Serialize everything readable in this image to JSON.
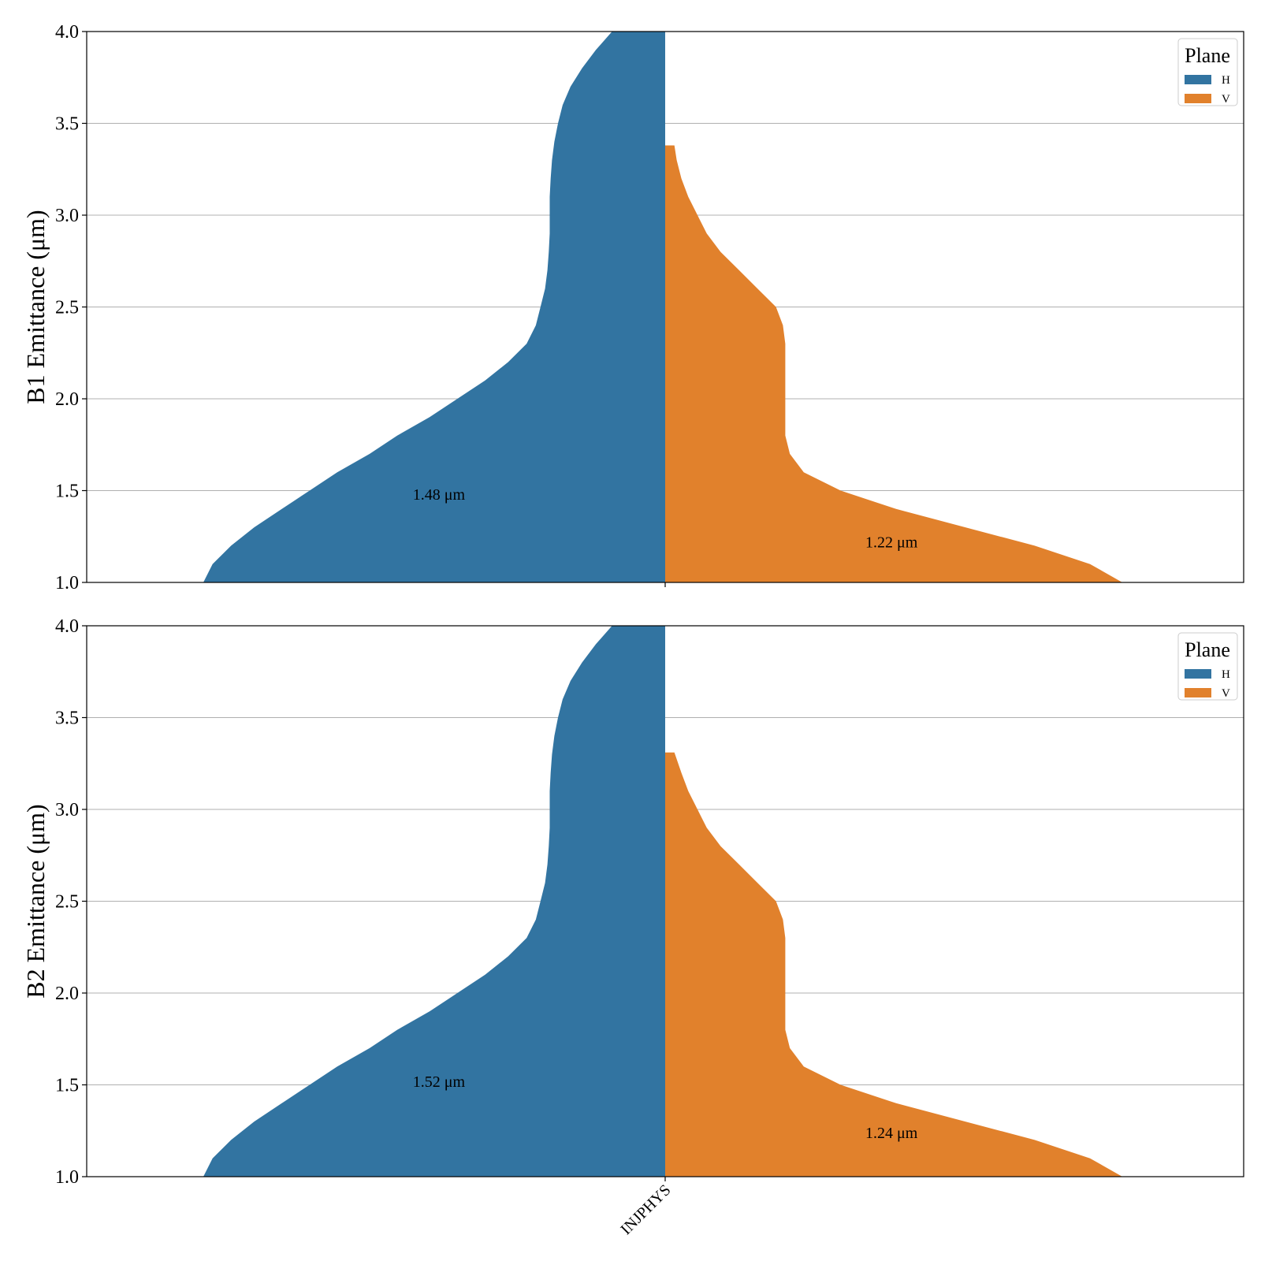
{
  "colors": {
    "H": "#3274a1",
    "V": "#e1812c"
  },
  "chart_data": [
    {
      "type": "violin",
      "ylabel": "B1 Emittance (μm)",
      "ylim": [
        1.0,
        4.0
      ],
      "yticks": [
        "1.0",
        "1.5",
        "2.0",
        "2.5",
        "3.0",
        "3.5",
        "4.0"
      ],
      "categories": [
        "INJPHYS"
      ],
      "grid": "y",
      "legend": {
        "title": "Plane",
        "placement": "top-right",
        "entries": [
          "H",
          "V"
        ]
      },
      "series": [
        {
          "name": "H",
          "side": "left",
          "profile": [
            [
              1.0,
              1.0
            ],
            [
              1.1,
              0.98
            ],
            [
              1.2,
              0.94
            ],
            [
              1.3,
              0.89
            ],
            [
              1.4,
              0.83
            ],
            [
              1.5,
              0.77
            ],
            [
              1.6,
              0.71
            ],
            [
              1.7,
              0.64
            ],
            [
              1.8,
              0.58
            ],
            [
              1.9,
              0.51
            ],
            [
              2.0,
              0.45
            ],
            [
              2.1,
              0.39
            ],
            [
              2.2,
              0.34
            ],
            [
              2.3,
              0.3
            ],
            [
              2.4,
              0.28
            ],
            [
              2.5,
              0.27
            ],
            [
              2.6,
              0.26
            ],
            [
              2.7,
              0.255
            ],
            [
              2.8,
              0.252
            ],
            [
              2.9,
              0.25
            ],
            [
              3.0,
              0.25
            ],
            [
              3.1,
              0.25
            ],
            [
              3.2,
              0.248
            ],
            [
              3.3,
              0.245
            ],
            [
              3.4,
              0.24
            ],
            [
              3.5,
              0.232
            ],
            [
              3.6,
              0.222
            ],
            [
              3.7,
              0.205
            ],
            [
              3.8,
              0.18
            ],
            [
              3.9,
              0.15
            ],
            [
              4.0,
              0.115
            ]
          ],
          "annotation": {
            "text": "1.48 μm",
            "value": 1.48
          }
        },
        {
          "name": "V",
          "side": "right",
          "profile": [
            [
              1.0,
              0.99
            ],
            [
              1.1,
              0.92
            ],
            [
              1.2,
              0.8
            ],
            [
              1.3,
              0.65
            ],
            [
              1.4,
              0.5
            ],
            [
              1.5,
              0.38
            ],
            [
              1.6,
              0.3
            ],
            [
              1.7,
              0.27
            ],
            [
              1.8,
              0.26
            ],
            [
              1.9,
              0.26
            ],
            [
              2.0,
              0.26
            ],
            [
              2.1,
              0.26
            ],
            [
              2.2,
              0.26
            ],
            [
              2.3,
              0.26
            ],
            [
              2.4,
              0.255
            ],
            [
              2.5,
              0.24
            ],
            [
              2.6,
              0.2
            ],
            [
              2.7,
              0.16
            ],
            [
              2.8,
              0.12
            ],
            [
              2.9,
              0.09
            ],
            [
              3.0,
              0.07
            ],
            [
              3.1,
              0.05
            ],
            [
              3.2,
              0.035
            ],
            [
              3.3,
              0.025
            ],
            [
              3.38,
              0.02
            ]
          ],
          "annotation": {
            "text": "1.22 μm",
            "value": 1.22
          }
        }
      ]
    },
    {
      "type": "violin",
      "ylabel": "B2 Emittance (μm)",
      "ylim": [
        1.0,
        4.0
      ],
      "yticks": [
        "1.0",
        "1.5",
        "2.0",
        "2.5",
        "3.0",
        "3.5",
        "4.0"
      ],
      "categories": [
        "INJPHYS"
      ],
      "grid": "y",
      "legend": {
        "title": "Plane",
        "placement": "top-right",
        "entries": [
          "H",
          "V"
        ]
      },
      "series": [
        {
          "name": "H",
          "side": "left",
          "profile": [
            [
              1.0,
              1.0
            ],
            [
              1.1,
              0.98
            ],
            [
              1.2,
              0.94
            ],
            [
              1.3,
              0.89
            ],
            [
              1.4,
              0.83
            ],
            [
              1.5,
              0.77
            ],
            [
              1.6,
              0.71
            ],
            [
              1.7,
              0.64
            ],
            [
              1.8,
              0.58
            ],
            [
              1.9,
              0.51
            ],
            [
              2.0,
              0.45
            ],
            [
              2.1,
              0.39
            ],
            [
              2.2,
              0.34
            ],
            [
              2.3,
              0.3
            ],
            [
              2.4,
              0.28
            ],
            [
              2.5,
              0.27
            ],
            [
              2.6,
              0.26
            ],
            [
              2.7,
              0.255
            ],
            [
              2.8,
              0.252
            ],
            [
              2.9,
              0.25
            ],
            [
              3.0,
              0.25
            ],
            [
              3.1,
              0.25
            ],
            [
              3.2,
              0.248
            ],
            [
              3.3,
              0.245
            ],
            [
              3.4,
              0.24
            ],
            [
              3.5,
              0.232
            ],
            [
              3.6,
              0.222
            ],
            [
              3.7,
              0.205
            ],
            [
              3.8,
              0.18
            ],
            [
              3.9,
              0.15
            ],
            [
              4.0,
              0.115
            ]
          ],
          "annotation": {
            "text": "1.52 μm",
            "value": 1.52
          }
        },
        {
          "name": "V",
          "side": "right",
          "profile": [
            [
              1.0,
              0.99
            ],
            [
              1.1,
              0.92
            ],
            [
              1.2,
              0.8
            ],
            [
              1.3,
              0.65
            ],
            [
              1.4,
              0.5
            ],
            [
              1.5,
              0.38
            ],
            [
              1.6,
              0.3
            ],
            [
              1.7,
              0.27
            ],
            [
              1.8,
              0.26
            ],
            [
              1.9,
              0.26
            ],
            [
              2.0,
              0.26
            ],
            [
              2.1,
              0.26
            ],
            [
              2.2,
              0.26
            ],
            [
              2.3,
              0.26
            ],
            [
              2.4,
              0.255
            ],
            [
              2.5,
              0.24
            ],
            [
              2.6,
              0.2
            ],
            [
              2.7,
              0.16
            ],
            [
              2.8,
              0.12
            ],
            [
              2.9,
              0.09
            ],
            [
              3.0,
              0.07
            ],
            [
              3.1,
              0.05
            ],
            [
              3.2,
              0.035
            ],
            [
              3.31,
              0.02
            ]
          ],
          "annotation": {
            "text": "1.24 μm",
            "value": 1.24
          }
        }
      ]
    }
  ]
}
